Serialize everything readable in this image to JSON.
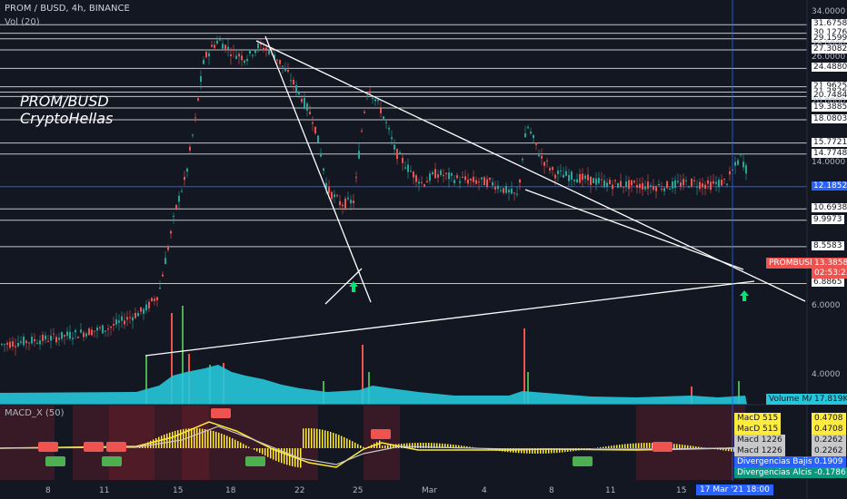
{
  "header": {
    "symbol_line": "PROM / BUSD, 4h, BINANCE",
    "volume_label": "Vol (20)"
  },
  "overlay": {
    "line1": "PROM/BUSD",
    "line2": "CryptoHellas"
  },
  "price_axis": {
    "levels": [
      "34.0000",
      "31.6758",
      "30.1276",
      "29.1599",
      "28.0000",
      "27.3082",
      "26.0000",
      "24.4880",
      "21.9625",
      "21.2826",
      "20.7484",
      "20.0000",
      "19.3885",
      "18.0803",
      "15.7721",
      "14.7748",
      "14.0000",
      "12.1852",
      "10.6938",
      "9.9973",
      "8.5583",
      "6.8865",
      "6.0000",
      "4.0000"
    ],
    "last_price_label": "PROMBUSD",
    "last_price": "13.3858",
    "countdown": "02:53:23",
    "volume_ma_label": "Volume MA",
    "volume_ma_value": "17.819K"
  },
  "indicator": {
    "title": "MACD_X (50)",
    "legend": [
      {
        "label": "MacD 515",
        "value": "0.4708",
        "color": "#ffeb3b"
      },
      {
        "label": "MacD 515",
        "value": "0.4708",
        "color": "#ffeb3b"
      },
      {
        "label": "Macd 1226",
        "value": "0.2262",
        "color": "#c8c8c8"
      },
      {
        "label": "Macd 1226",
        "value": "0.2262",
        "color": "#c8c8c8"
      },
      {
        "label": "Divergencias Bajistas",
        "value": "0.1909",
        "color": "#2962ff"
      },
      {
        "label": "Divergencias Alcistas",
        "value": "-0.1786",
        "color": "#089981"
      }
    ]
  },
  "time_axis": {
    "ticks": [
      "8",
      "11",
      "15",
      "18",
      "22",
      "25",
      "Mar",
      "4",
      "8",
      "11",
      "15"
    ],
    "cursor_time": "17 Mar '21  18:00"
  },
  "colors": {
    "background": "#131722",
    "up": "#26a69a",
    "down": "#ef5350",
    "volume_area": "#26c6da",
    "grid_line": "#ffffff"
  }
}
